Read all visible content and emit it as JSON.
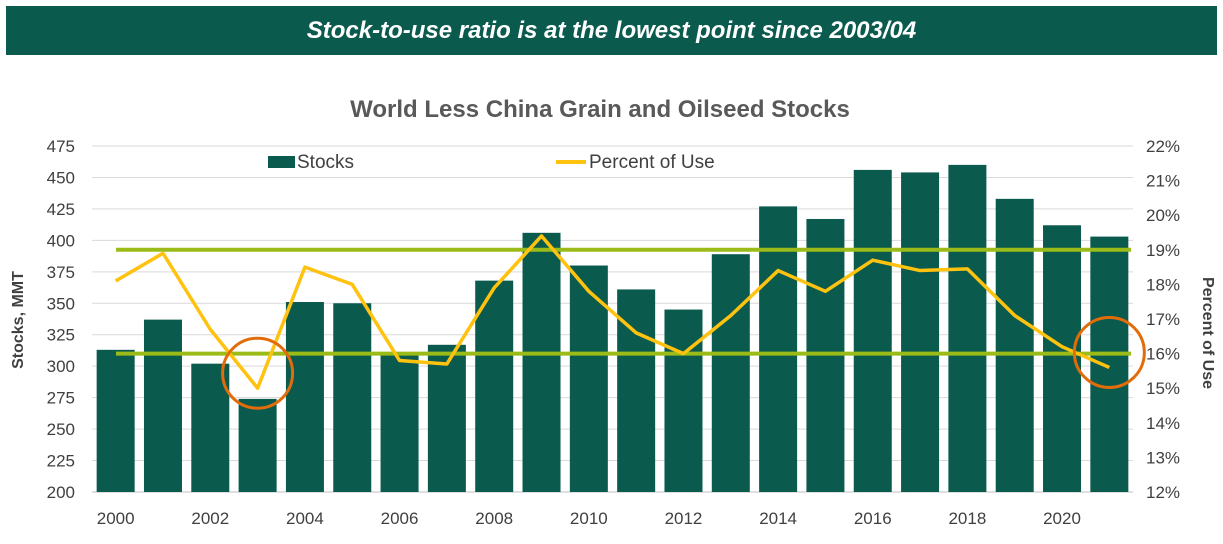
{
  "banner": {
    "text": "Stock-to-use ratio is at the lowest point since 2003/04"
  },
  "colors": {
    "bar": "#0b5a4e",
    "line": "#ffc20e",
    "band": "#9bbb18",
    "highlight": "#e36c0a",
    "banner": "#0b5a4e"
  },
  "chart_data": {
    "type": "bar",
    "title": "World Less China Grain and Oilseed Stocks",
    "ylabel": "Stocks, MMT",
    "y2label": "Percent of Use",
    "x": [
      2000,
      2001,
      2002,
      2003,
      2004,
      2005,
      2006,
      2007,
      2008,
      2009,
      2010,
      2011,
      2012,
      2013,
      2014,
      2015,
      2016,
      2017,
      2018,
      2019,
      2020,
      2021
    ],
    "xticks": [
      "2000",
      "2002",
      "2004",
      "2006",
      "2008",
      "2010",
      "2012",
      "2014",
      "2016",
      "2018",
      "2020"
    ],
    "ylim": [
      200,
      475
    ],
    "yticks": [
      "200",
      "225",
      "250",
      "275",
      "300",
      "325",
      "350",
      "375",
      "400",
      "425",
      "450",
      "475"
    ],
    "y2lim": [
      12,
      22
    ],
    "y2ticks": [
      "12%",
      "13%",
      "14%",
      "15%",
      "16%",
      "17%",
      "18%",
      "19%",
      "20%",
      "21%",
      "22%"
    ],
    "series": [
      {
        "name": "Stocks",
        "type": "bar",
        "axis": "left",
        "values": [
          313,
          337,
          302,
          274,
          351,
          350,
          311,
          317,
          368,
          406,
          380,
          361,
          345,
          389,
          427,
          417,
          456,
          454,
          460,
          433,
          412,
          403
        ]
      },
      {
        "name": "Percent of Use",
        "type": "line",
        "axis": "right",
        "values": [
          18.1,
          18.9,
          16.7,
          15.0,
          18.5,
          18.0,
          15.8,
          15.7,
          17.9,
          19.4,
          17.8,
          16.6,
          16.0,
          17.1,
          18.4,
          17.8,
          18.7,
          18.4,
          18.45,
          17.1,
          16.2,
          15.6
        ]
      }
    ],
    "reference_lines": [
      19.0,
      16.0
    ],
    "highlights": [
      2003,
      2021
    ],
    "legend": "top",
    "grid": true
  }
}
